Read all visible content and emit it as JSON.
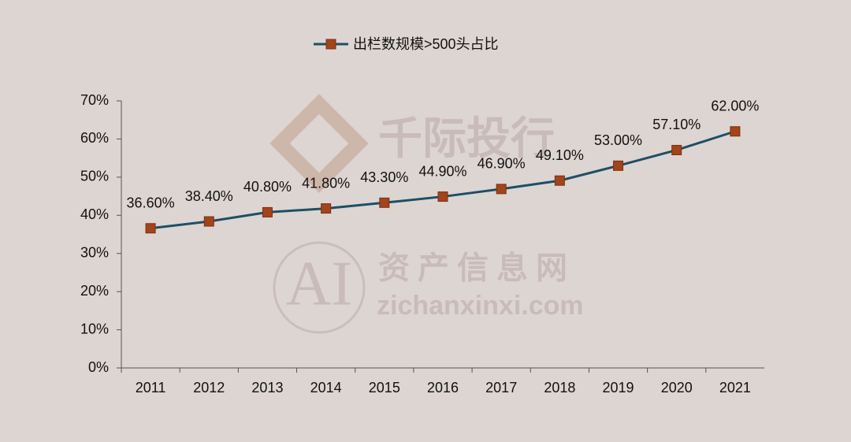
{
  "chart_data": {
    "type": "line",
    "categories": [
      "2011",
      "2012",
      "2013",
      "2014",
      "2015",
      "2016",
      "2017",
      "2018",
      "2019",
      "2020",
      "2021"
    ],
    "series": [
      {
        "name": "出栏数规模>500头占比",
        "color": "#1d4f66",
        "marker_color": "#a3441b",
        "values": [
          36.6,
          38.4,
          40.8,
          41.8,
          43.3,
          44.9,
          46.9,
          49.1,
          53.0,
          57.1,
          62.0
        ],
        "value_labels": [
          "36.60%",
          "38.40%",
          "40.80%",
          "41.80%",
          "43.30%",
          "44.90%",
          "46.90%",
          "49.10%",
          "53.00%",
          "57.10%",
          "62.00%"
        ]
      }
    ],
    "ylim": [
      0,
      70
    ],
    "yticks": [
      {
        "value": 0,
        "label": "0%"
      },
      {
        "value": 10,
        "label": "10%"
      },
      {
        "value": 20,
        "label": "20%"
      },
      {
        "value": 30,
        "label": "30%"
      },
      {
        "value": 40,
        "label": "40%"
      },
      {
        "value": 50,
        "label": "50%"
      },
      {
        "value": 60,
        "label": "60%"
      },
      {
        "value": 70,
        "label": "70%"
      }
    ],
    "legend": "top",
    "watermarks": [
      "千际投行",
      "AI",
      "资产信息网",
      "zichanxinxi.com"
    ]
  }
}
